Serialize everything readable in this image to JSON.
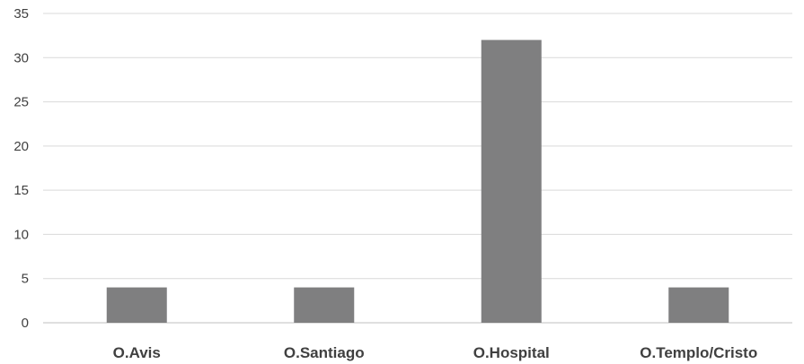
{
  "chart_data": {
    "type": "bar",
    "categories": [
      "O.Avis",
      "O.Santiago",
      "O.Hospital",
      "O.Templo/Cristo"
    ],
    "values": [
      4,
      4,
      32,
      4
    ],
    "ylim": [
      0,
      35
    ],
    "yticks": [
      0,
      5,
      10,
      15,
      20,
      25,
      30,
      35
    ],
    "grid": true,
    "legend": "none",
    "bar_color": "#7f7f80"
  }
}
